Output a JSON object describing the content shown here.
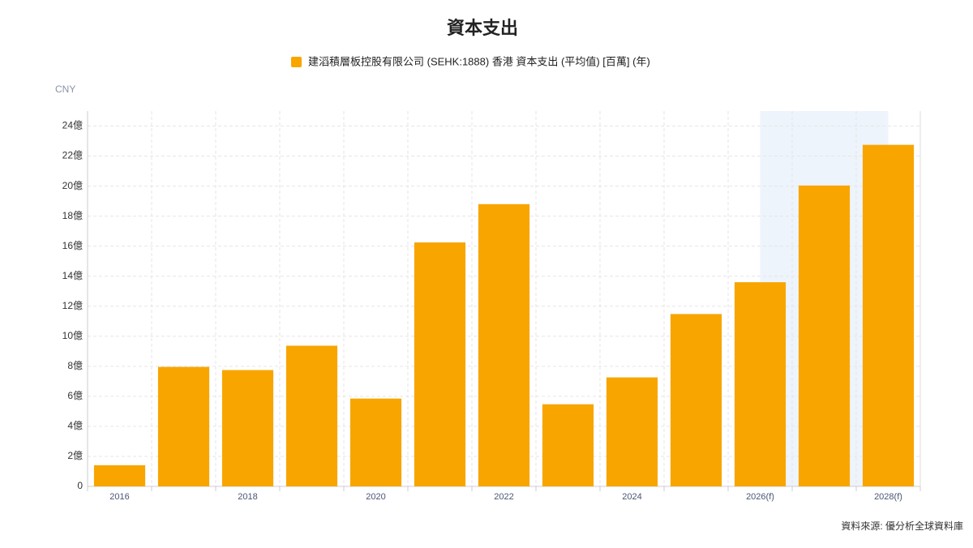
{
  "chart_data": {
    "type": "bar",
    "title": "資本支出",
    "unit_label": "CNY",
    "source": "資料來源: 優分析全球資料庫",
    "categories": [
      "2016",
      null,
      "2018",
      null,
      "2020",
      null,
      "2022",
      null,
      "2024",
      null,
      "2026(f)",
      null,
      "2028(f)"
    ],
    "series": [
      {
        "name": "建滔積層板控股有限公司 (SEHK:1888) 香港 資本支出 (平均值) [百萬] (年)",
        "color": "#f8a500",
        "values": [
          1.41,
          7.96,
          7.75,
          9.37,
          5.85,
          16.25,
          18.8,
          5.47,
          7.26,
          11.48,
          13.6,
          20.04,
          22.75
        ]
      }
    ],
    "ylim": [
      0,
      25
    ],
    "yticks": [
      0,
      {
        "value": 2,
        "label": "2億"
      },
      {
        "value": 4,
        "label": "4億"
      },
      {
        "value": 6,
        "label": "6億"
      },
      {
        "value": 8,
        "label": "8億"
      },
      {
        "value": 10,
        "label": "10億"
      },
      {
        "value": 12,
        "label": "12億"
      },
      {
        "value": 14,
        "label": "14億"
      },
      {
        "value": 16,
        "label": "16億"
      },
      {
        "value": 18,
        "label": "18億"
      },
      {
        "value": 20,
        "label": "20億"
      },
      {
        "value": 22,
        "label": "22億"
      },
      {
        "value": 24,
        "label": "24億"
      }
    ],
    "grid": true
  }
}
